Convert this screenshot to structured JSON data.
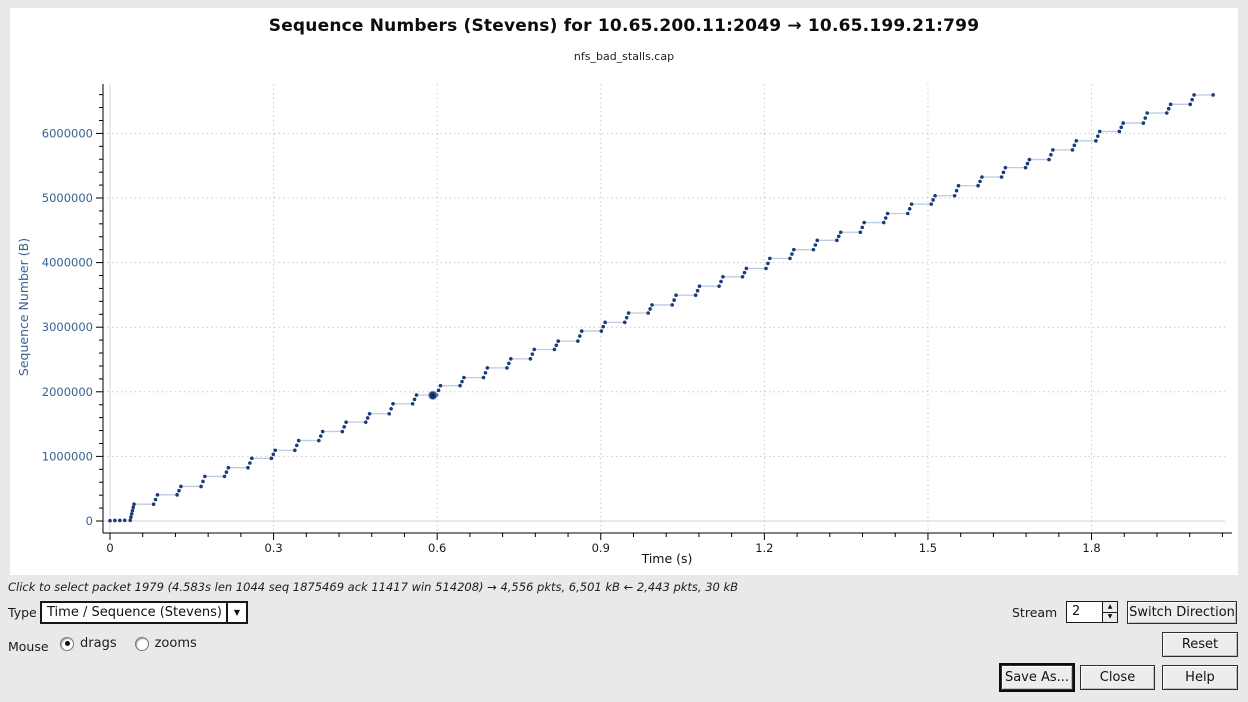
{
  "header": {
    "title": "Sequence Numbers (Stevens) for 10.65.200.11:2049 → 10.65.199.21:799",
    "subtitle": "nfs_bad_stalls.cap"
  },
  "status_line": "Click to select packet 1979 (4.583s len 1044 seq 1875469 ack 11417 win 514208) → 4,556 pkts, 6,501 kB ← 2,443 pkts, 30 kB",
  "controls": {
    "type_label": "Type",
    "type_value": "Time / Sequence (Stevens)",
    "mouse_label": "Mouse",
    "mouse_options": [
      "drags",
      "zooms"
    ],
    "mouse_selected": "drags",
    "stream_label": "Stream",
    "stream_value": "2",
    "switch_direction": "Switch Direction",
    "reset": "Reset",
    "save_as": "Save As...",
    "close": "Close",
    "help": "Help"
  },
  "chart_data": {
    "type": "scatter",
    "title": "Sequence Numbers (Stevens) for 10.65.200.11:2049 → 10.65.199.21:799",
    "subtitle": "nfs_bad_stalls.cap",
    "xlabel": "Time (s)",
    "ylabel": "Sequence Number (B)",
    "xlim": [
      0,
      2.05
    ],
    "ylim": [
      0,
      6860000
    ],
    "xticks": [
      0,
      0.3,
      0.6,
      0.9,
      1.2,
      1.5,
      1.8
    ],
    "yticks": [
      0,
      1000000,
      2000000,
      3000000,
      4000000,
      5000000,
      6000000
    ],
    "x_minor_step": 0.06,
    "y_minor_step": 200000,
    "grid": "dotted",
    "colors": {
      "point": "#1a3c78",
      "connector": "#bfcbdf",
      "grid": "#c9c9c9",
      "zero_line": "#d6d6d6",
      "axis": "#000000",
      "y_tick_label": "#3a6191",
      "x_tick_label": "#1a1a1a"
    },
    "initial_points": [
      [
        0.0,
        5000
      ],
      [
        0.009,
        8000
      ],
      [
        0.018,
        8000
      ],
      [
        0.027,
        10000
      ]
    ],
    "bursts": [
      [
        0.037,
        10000,
        260000
      ],
      [
        0.08,
        260000,
        405000
      ],
      [
        0.123,
        405000,
        535000
      ],
      [
        0.167,
        535000,
        690000
      ],
      [
        0.21,
        690000,
        825000
      ],
      [
        0.253,
        825000,
        970000
      ],
      [
        0.296,
        970000,
        1095000
      ],
      [
        0.339,
        1095000,
        1245000
      ],
      [
        0.383,
        1245000,
        1385000
      ],
      [
        0.426,
        1385000,
        1530000
      ],
      [
        0.469,
        1530000,
        1660000
      ],
      [
        0.512,
        1660000,
        1815000
      ],
      [
        0.555,
        1815000,
        1950000
      ],
      [
        0.599,
        1950000,
        2095000
      ],
      [
        0.642,
        2095000,
        2220000
      ],
      [
        0.685,
        2220000,
        2370000
      ],
      [
        0.728,
        2370000,
        2510000
      ],
      [
        0.771,
        2510000,
        2655000
      ],
      [
        0.815,
        2655000,
        2785000
      ],
      [
        0.858,
        2785000,
        2940000
      ],
      [
        0.901,
        2940000,
        3075000
      ],
      [
        0.944,
        3075000,
        3220000
      ],
      [
        0.987,
        3220000,
        3345000
      ],
      [
        1.031,
        3345000,
        3495000
      ],
      [
        1.074,
        3495000,
        3635000
      ],
      [
        1.117,
        3635000,
        3780000
      ],
      [
        1.16,
        3780000,
        3910000
      ],
      [
        1.203,
        3910000,
        4065000
      ],
      [
        1.247,
        4065000,
        4200000
      ],
      [
        1.29,
        4200000,
        4345000
      ],
      [
        1.333,
        4345000,
        4470000
      ],
      [
        1.376,
        4470000,
        4620000
      ],
      [
        1.419,
        4620000,
        4760000
      ],
      [
        1.463,
        4760000,
        4905000
      ],
      [
        1.506,
        4905000,
        5035000
      ],
      [
        1.549,
        5035000,
        5190000
      ],
      [
        1.592,
        5190000,
        5325000
      ],
      [
        1.635,
        5325000,
        5470000
      ],
      [
        1.679,
        5470000,
        5595000
      ],
      [
        1.722,
        5595000,
        5745000
      ],
      [
        1.765,
        5745000,
        5885000
      ],
      [
        1.808,
        5885000,
        6030000
      ],
      [
        1.851,
        6030000,
        6160000
      ],
      [
        1.895,
        6160000,
        6315000
      ],
      [
        1.938,
        6315000,
        6450000
      ],
      [
        1.981,
        6450000,
        6595000
      ]
    ],
    "final_point": [
      2.023,
      6595000
    ],
    "selected_marker": {
      "time": 0.592,
      "seq": 1945000
    }
  }
}
